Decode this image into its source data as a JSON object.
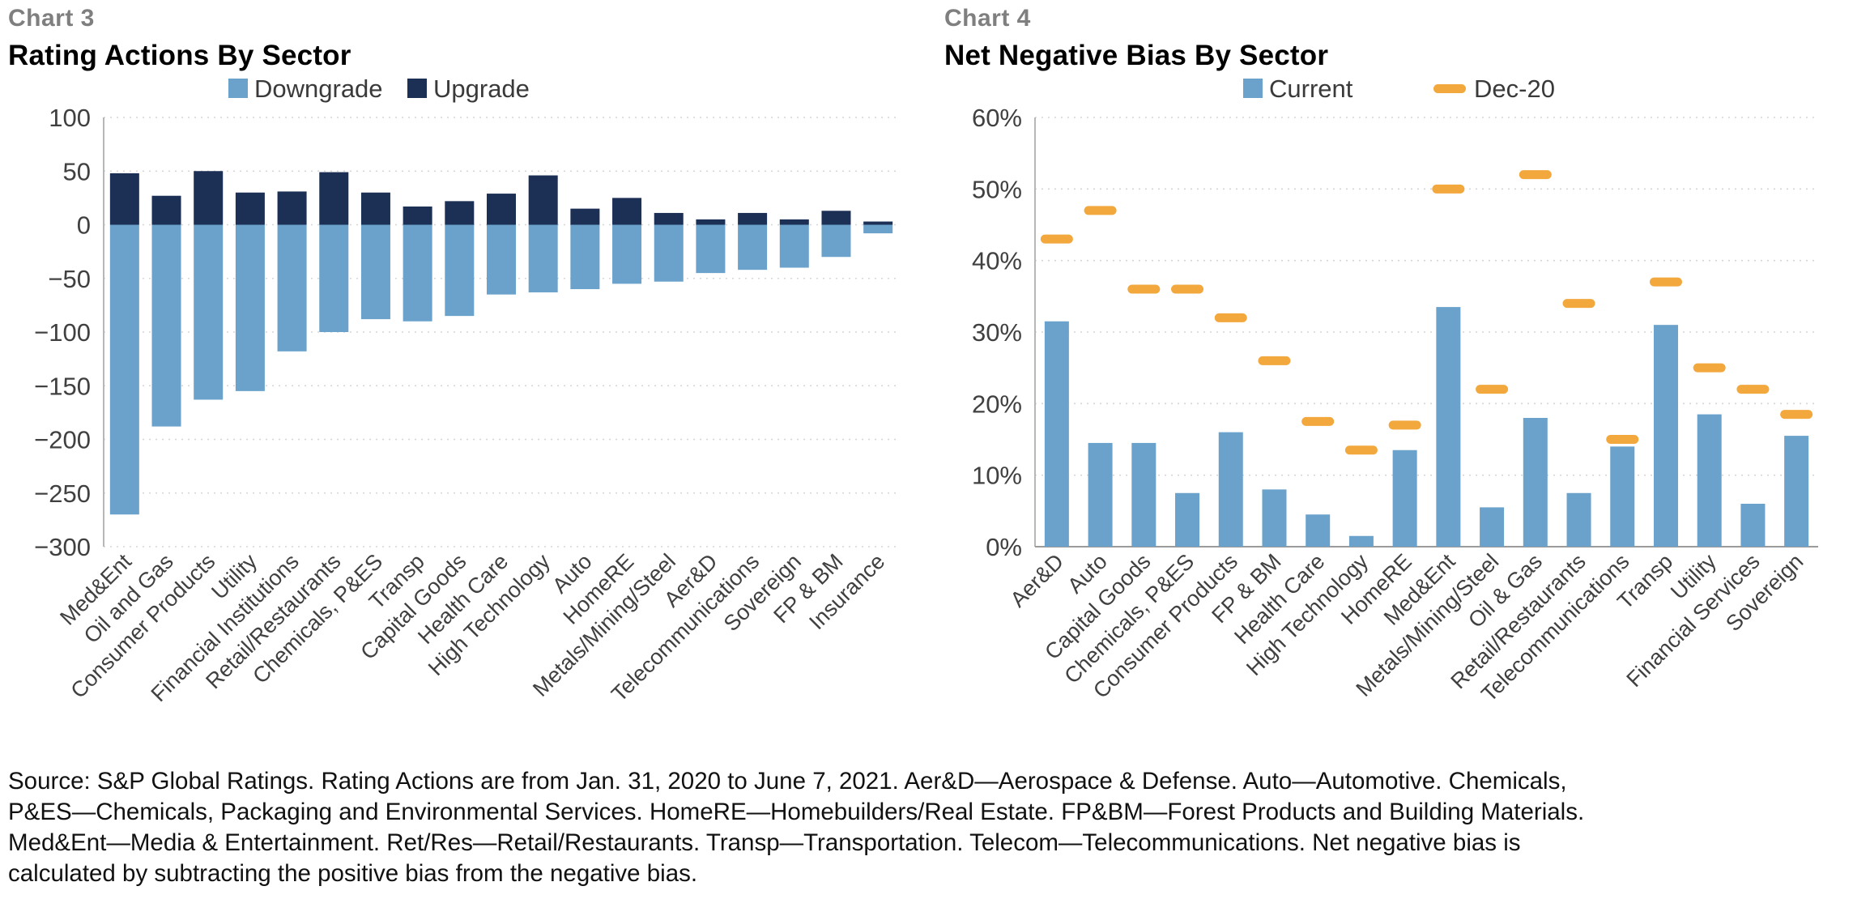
{
  "charts": {
    "chart3": {
      "label": "Chart 3",
      "title": "Rating Actions By Sector"
    },
    "chart4": {
      "label": "Chart 4",
      "title": "Net Negative Bias By Sector"
    }
  },
  "footer": {
    "lines": [
      "Source: S&P Global Ratings. Rating Actions are from Jan. 31, 2020 to June 7, 2021. Aer&D—Aerospace & Defense. Auto—Automotive. Chemicals,",
      "P&ES—Chemicals, Packaging and Environmental Services. HomeRE—Homebuilders/Real Estate. FP&BM—Forest Products and Building Materials.",
      "Med&Ent—Media & Entertainment. Ret/Res—Retail/Restaurants. Transp—Transportation. Telecom—Telecommunications. Net negative bias is",
      "calculated by subtracting the positive bias from the negative bias."
    ]
  },
  "colors": {
    "downgrade": "#6AA2CB",
    "upgrade": "#1C2F55",
    "current": "#6AA2CB",
    "dec20": "#F2A83C",
    "gridline": "#D6D6D6",
    "axis": "#B7B7B7",
    "tick_text": "#404040"
  },
  "chart_data": [
    {
      "id": "chart3",
      "type": "bar",
      "subtype": "diverging",
      "title": "Rating Actions By Sector",
      "legend_position": "top",
      "grid": true,
      "ylim": [
        -300,
        100
      ],
      "ytick_step": 50,
      "tick_format": "number",
      "xlabel": "",
      "ylabel": "",
      "categories": [
        "Med&Ent",
        "Oil and Gas",
        "Consumer Products",
        "Utility",
        "Financial Institutions",
        "Retail/Restaurants",
        "Chemicals, P&ES",
        "Transp",
        "Capital Goods",
        "Health Care",
        "High Technology",
        "Auto",
        "HomeRE",
        "Metals/Mining/Steel",
        "Aer&D",
        "Telecommunications",
        "Sovereign",
        "FP & BM",
        "Insurance"
      ],
      "series": [
        {
          "name": "Downgrade",
          "marker": "square",
          "color": "#6AA2CB",
          "values": [
            -270,
            -188,
            -163,
            -155,
            -118,
            -100,
            -88,
            -90,
            -85,
            -65,
            -63,
            -60,
            -55,
            -53,
            -45,
            -42,
            -40,
            -30,
            -8
          ]
        },
        {
          "name": "Upgrade",
          "marker": "square",
          "color": "#1C2F55",
          "values": [
            48,
            27,
            50,
            30,
            31,
            49,
            30,
            17,
            22,
            29,
            46,
            15,
            25,
            11,
            5,
            11,
            5,
            13,
            3
          ]
        }
      ]
    },
    {
      "id": "chart4",
      "type": "bar",
      "subtype": "bars-with-markers",
      "title": "Net Negative Bias By Sector",
      "legend_position": "top",
      "grid": true,
      "ylim": [
        0,
        60
      ],
      "ytick_step": 10,
      "tick_format": "percent",
      "xlabel": "",
      "ylabel": "",
      "categories": [
        "Aer&D",
        "Auto",
        "Capital Goods",
        "Chemicals, P&ES",
        "Consumer Products",
        "FP & BM",
        "Health Care",
        "High Technology",
        "HomeRE",
        "Med&Ent",
        "Metals/Mining/Steel",
        "Oil & Gas",
        "Retail/Restaurants",
        "Telecommunications",
        "Transp",
        "Utility",
        "Financial Services",
        "Sovereign"
      ],
      "series": [
        {
          "name": "Current",
          "marker": "square",
          "color": "#6AA2CB",
          "values": [
            31.5,
            14.5,
            14.5,
            7.5,
            16,
            8,
            4.5,
            1.5,
            13.5,
            33.5,
            5.5,
            18,
            7.5,
            14,
            31,
            18.5,
            6,
            15.5
          ]
        },
        {
          "name": "Dec-20",
          "marker": "dash",
          "color": "#F2A83C",
          "values": [
            43,
            47,
            36,
            36,
            32,
            26,
            17.5,
            13.5,
            17,
            50,
            22,
            52,
            34,
            15,
            37,
            25,
            22,
            18.5
          ]
        }
      ]
    }
  ]
}
